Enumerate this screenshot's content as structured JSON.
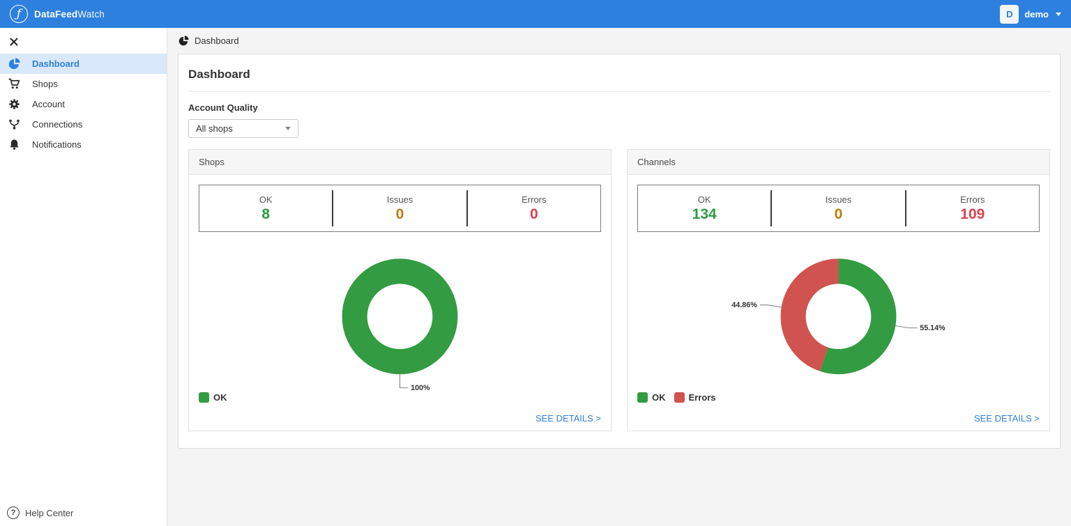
{
  "topbar": {
    "brand_bold": "DataFeed",
    "brand_light": "Watch",
    "logo_glyph": "ƒ",
    "user_initial": "D",
    "user_name": "demo"
  },
  "sidebar": {
    "items": [
      {
        "label": "Dashboard",
        "icon": "pie-chart",
        "active": true
      },
      {
        "label": "Shops",
        "icon": "shopping-cart",
        "active": false
      },
      {
        "label": "Account",
        "icon": "gear",
        "active": false
      },
      {
        "label": "Connections",
        "icon": "branch",
        "active": false
      },
      {
        "label": "Notifications",
        "icon": "bell",
        "active": false
      }
    ],
    "help_label": "Help Center"
  },
  "breadcrumb": {
    "label": "Dashboard"
  },
  "main": {
    "title": "Dashboard",
    "filter_label": "Account Quality",
    "filter_value": "All shops",
    "see_details_label": "SEE DETAILS >",
    "cards": [
      {
        "title": "Shops",
        "stats": [
          {
            "label": "OK",
            "value": "8",
            "color": "#2e9b41"
          },
          {
            "label": "Issues",
            "value": "0",
            "color": "#bd7b09"
          },
          {
            "label": "Errors",
            "value": "0",
            "color": "#d9434f"
          }
        ]
      },
      {
        "title": "Channels",
        "stats": [
          {
            "label": "OK",
            "value": "134",
            "color": "#2e9b41"
          },
          {
            "label": "Issues",
            "value": "0",
            "color": "#bd7b09"
          },
          {
            "label": "Errors",
            "value": "109",
            "color": "#d9434f"
          }
        ]
      }
    ]
  },
  "colors": {
    "topbar_blue": "#2e80de",
    "accent_blue": "#2f80dd",
    "active_item_bg": "#d9e8fb",
    "ok_green": "#339b41",
    "issues_orange": "#bd7b09",
    "errors_red": "#d0534f"
  },
  "chart_data": [
    {
      "type": "pie",
      "title": "Shops",
      "legend_position": "bottom-left",
      "slices": [
        {
          "label": "OK",
          "count": 8,
          "pct": 100,
          "color": "#339b41"
        }
      ]
    },
    {
      "type": "pie",
      "title": "Channels",
      "legend_position": "bottom-left",
      "slices": [
        {
          "label": "OK",
          "count": 134,
          "pct": 55.14,
          "color": "#339b41"
        },
        {
          "label": "Errors",
          "count": 109,
          "pct": 44.86,
          "color": "#d0534f"
        }
      ]
    }
  ]
}
